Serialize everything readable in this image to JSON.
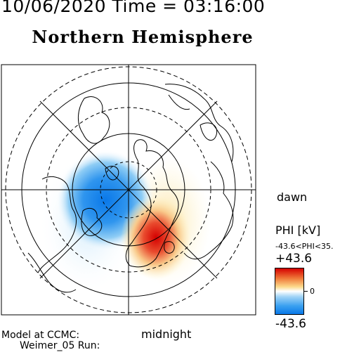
{
  "header": {
    "datetime": "10/06/2020 Time = 03:16:00",
    "hemisphere": "Northern Hemisphere"
  },
  "map": {
    "orientation_labels": {
      "dawn": "dawn",
      "midnight": "midnight"
    },
    "projection": "polar stereographic centered on geomagnetic north pole",
    "latitude_rings": "solid and dashed concentric circles",
    "meridian_lines": "radial lines every 45 degrees"
  },
  "legend": {
    "title": "PHI [kV]",
    "range_text": "-43.6<PHI<35.",
    "max_label": "+43.6",
    "zero_label": "0",
    "min_label": "-43.6",
    "colors": {
      "max": "#d40000",
      "zero": "#ffffff",
      "min": "#0a78e8"
    }
  },
  "footer": {
    "model": "Model at CCMC:",
    "run": "Weimer_05 Run:"
  }
}
